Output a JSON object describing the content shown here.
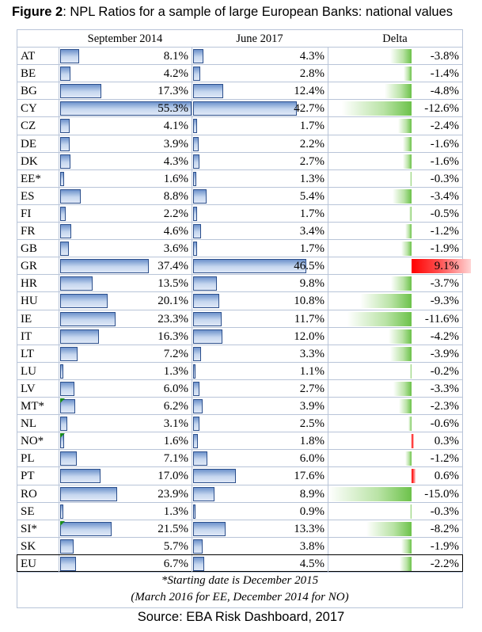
{
  "title": {
    "prefix": "Figure 2",
    "rest": ": NPL Ratios for a sample of large European Banks: national values"
  },
  "headers": {
    "sep2014": "September 2014",
    "jun2017": "June 2017",
    "delta": "Delta"
  },
  "chart_data": {
    "type": "table",
    "columns": [
      "September 2014",
      "June 2017",
      "Delta"
    ],
    "max_bar_value": 55.3,
    "max_delta_abs": 15.0,
    "rows": [
      {
        "country": "AT",
        "sep2014": 8.1,
        "jun2017": 4.3,
        "delta": -3.8,
        "sep_label": "8.1%",
        "jun_label": "4.3%",
        "delta_label": "-3.8%"
      },
      {
        "country": "BE",
        "sep2014": 4.2,
        "jun2017": 2.8,
        "delta": -1.4,
        "sep_label": "4.2%",
        "jun_label": "2.8%",
        "delta_label": "-1.4%"
      },
      {
        "country": "BG",
        "sep2014": 17.3,
        "jun2017": 12.4,
        "delta": -4.8,
        "sep_label": "17.3%",
        "jun_label": "12.4%",
        "delta_label": "-4.8%"
      },
      {
        "country": "CY",
        "sep2014": 55.3,
        "jun2017": 42.7,
        "delta": -12.6,
        "sep_label": "55.3%",
        "jun_label": "42.7%",
        "delta_label": "-12.6%"
      },
      {
        "country": "CZ",
        "sep2014": 4.1,
        "jun2017": 1.7,
        "delta": -2.4,
        "sep_label": "4.1%",
        "jun_label": "1.7%",
        "delta_label": "-2.4%"
      },
      {
        "country": "DE",
        "sep2014": 3.9,
        "jun2017": 2.2,
        "delta": -1.6,
        "sep_label": "3.9%",
        "jun_label": "2.2%",
        "delta_label": "-1.6%"
      },
      {
        "country": "DK",
        "sep2014": 4.3,
        "jun2017": 2.7,
        "delta": -1.6,
        "sep_label": "4.3%",
        "jun_label": "2.7%",
        "delta_label": "-1.6%"
      },
      {
        "country": "EE*",
        "sep2014": 1.6,
        "jun2017": 1.3,
        "delta": -0.3,
        "sep_label": "1.6%",
        "jun_label": "1.3%",
        "delta_label": "-0.3%"
      },
      {
        "country": "ES",
        "sep2014": 8.8,
        "jun2017": 5.4,
        "delta": -3.4,
        "sep_label": "8.8%",
        "jun_label": "5.4%",
        "delta_label": "-3.4%"
      },
      {
        "country": "FI",
        "sep2014": 2.2,
        "jun2017": 1.7,
        "delta": -0.5,
        "sep_label": "2.2%",
        "jun_label": "1.7%",
        "delta_label": "-0.5%"
      },
      {
        "country": "FR",
        "sep2014": 4.6,
        "jun2017": 3.4,
        "delta": -1.2,
        "sep_label": "4.6%",
        "jun_label": "3.4%",
        "delta_label": "-1.2%"
      },
      {
        "country": "GB",
        "sep2014": 3.6,
        "jun2017": 1.7,
        "delta": -1.9,
        "sep_label": "3.6%",
        "jun_label": "1.7%",
        "delta_label": "-1.9%"
      },
      {
        "country": "GR",
        "sep2014": 37.4,
        "jun2017": 46.5,
        "delta": 9.1,
        "sep_label": "37.4%",
        "jun_label": "46.5%",
        "delta_label": "9.1%"
      },
      {
        "country": "HR",
        "sep2014": 13.5,
        "jun2017": 9.8,
        "delta": -3.7,
        "sep_label": "13.5%",
        "jun_label": "9.8%",
        "delta_label": "-3.7%"
      },
      {
        "country": "HU",
        "sep2014": 20.1,
        "jun2017": 10.8,
        "delta": -9.3,
        "sep_label": "20.1%",
        "jun_label": "10.8%",
        "delta_label": "-9.3%"
      },
      {
        "country": "IE",
        "sep2014": 23.3,
        "jun2017": 11.7,
        "delta": -11.6,
        "sep_label": "23.3%",
        "jun_label": "11.7%",
        "delta_label": "-11.6%"
      },
      {
        "country": "IT",
        "sep2014": 16.3,
        "jun2017": 12.0,
        "delta": -4.2,
        "sep_label": "16.3%",
        "jun_label": "12.0%",
        "delta_label": "-4.2%"
      },
      {
        "country": "LT",
        "sep2014": 7.2,
        "jun2017": 3.3,
        "delta": -3.9,
        "sep_label": "7.2%",
        "jun_label": "3.3%",
        "delta_label": "-3.9%"
      },
      {
        "country": "LU",
        "sep2014": 1.3,
        "jun2017": 1.1,
        "delta": -0.2,
        "sep_label": "1.3%",
        "jun_label": "1.1%",
        "delta_label": "-0.2%"
      },
      {
        "country": "LV",
        "sep2014": 6.0,
        "jun2017": 2.7,
        "delta": -3.3,
        "sep_label": "6.0%",
        "jun_label": "2.7%",
        "delta_label": "-3.3%"
      },
      {
        "country": "MT*",
        "sep2014": 6.2,
        "jun2017": 3.9,
        "delta": -2.3,
        "sep_label": "6.2%",
        "jun_label": "3.9%",
        "delta_label": "-2.3%",
        "marker": true
      },
      {
        "country": "NL",
        "sep2014": 3.1,
        "jun2017": 2.5,
        "delta": -0.6,
        "sep_label": "3.1%",
        "jun_label": "2.5%",
        "delta_label": "-0.6%"
      },
      {
        "country": "NO*",
        "sep2014": 1.6,
        "jun2017": 1.8,
        "delta": 0.3,
        "sep_label": "1.6%",
        "jun_label": "1.8%",
        "delta_label": "0.3%",
        "marker": true
      },
      {
        "country": "PL",
        "sep2014": 7.1,
        "jun2017": 6.0,
        "delta": -1.2,
        "sep_label": "7.1%",
        "jun_label": "6.0%",
        "delta_label": "-1.2%"
      },
      {
        "country": "PT",
        "sep2014": 17.0,
        "jun2017": 17.6,
        "delta": 0.6,
        "sep_label": "17.0%",
        "jun_label": "17.6%",
        "delta_label": "0.6%"
      },
      {
        "country": "RO",
        "sep2014": 23.9,
        "jun2017": 8.9,
        "delta": -15.0,
        "sep_label": "23.9%",
        "jun_label": "8.9%",
        "delta_label": "-15.0%"
      },
      {
        "country": "SE",
        "sep2014": 1.3,
        "jun2017": 0.9,
        "delta": -0.3,
        "sep_label": "1.3%",
        "jun_label": "0.9%",
        "delta_label": "-0.3%"
      },
      {
        "country": "SI*",
        "sep2014": 21.5,
        "jun2017": 13.3,
        "delta": -8.2,
        "sep_label": "21.5%",
        "jun_label": "13.3%",
        "delta_label": "-8.2%",
        "marker": true
      },
      {
        "country": "SK",
        "sep2014": 5.7,
        "jun2017": 3.8,
        "delta": -1.9,
        "sep_label": "5.7%",
        "jun_label": "3.8%",
        "delta_label": "-1.9%"
      },
      {
        "country": "EU",
        "sep2014": 6.7,
        "jun2017": 4.5,
        "delta": -2.2,
        "sep_label": "6.7%",
        "jun_label": "4.5%",
        "delta_label": "-2.2%",
        "total": true
      }
    ]
  },
  "footnote": {
    "line1": "*Starting date is December 2015",
    "line2": "(March 2016 for EE, December 2014 for NO)"
  },
  "source": "Source: EBA Risk Dashboard, 2017",
  "colors": {
    "bar_border": "#2c4f8c",
    "negative_delta": "#6cc24a",
    "positive_delta": "#ff0000"
  }
}
